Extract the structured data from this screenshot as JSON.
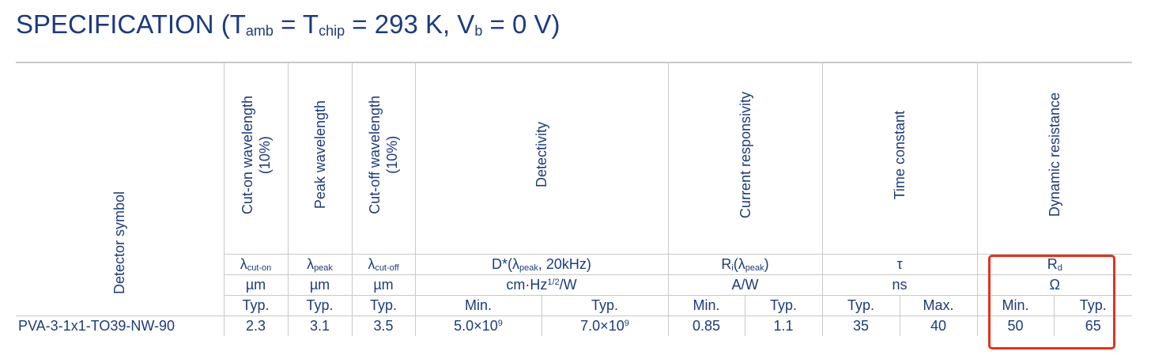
{
  "title": {
    "prefix": "SPECIFICATION (T",
    "amb": "amb",
    "eq1": " = T",
    "chip": "chip",
    "eq2": " = 293 K, V",
    "b": "b",
    "suffix": " = 0 V)"
  },
  "headers": {
    "detector_symbol": "Detector symbol",
    "cut_on": "Cut-on wavelength\n(10%)",
    "peak": "Peak wavelength",
    "cut_off": "Cut-off wavelength\n(10%)",
    "detectivity": "Detectivity",
    "responsivity": "Current responsivity",
    "time_constant": "Time constant",
    "dynamic_resistance": "Dynamic resistance"
  },
  "params": {
    "cut_on_sym": "λ",
    "cut_on_sub": "cut-on",
    "peak_sym": "λ",
    "peak_sub": "peak",
    "cut_off_sym": "λ",
    "cut_off_sub": "cut-off",
    "det_a": "D*(λ",
    "det_sub": "peak",
    "det_b": ", 20kHz)",
    "resp_a": "R",
    "resp_sub1": "i",
    "resp_b": "(λ",
    "resp_sub2": "peak",
    "resp_c": ")",
    "tau": "τ",
    "rd": "R",
    "rd_sub": "d"
  },
  "units": {
    "cut_on": "µm",
    "peak": "µm",
    "cut_off": "µm",
    "det_a": "cm·Hz",
    "det_sup": "1/2",
    "det_b": "/W",
    "resp": "A/W",
    "time": "ns",
    "res": "Ω"
  },
  "stats": {
    "cut_on": "Typ.",
    "peak": "Typ.",
    "cut_off": "Typ.",
    "det_min": "Min.",
    "det_typ": "Typ.",
    "resp_min": "Min.",
    "resp_typ": "Typ.",
    "time_typ": "Typ.",
    "time_max": "Max.",
    "res_min": "Min.",
    "res_typ": "Typ."
  },
  "row": {
    "model": "PVA-3-1x1-TO39-NW-90",
    "cut_on": "2.3",
    "peak": "3.1",
    "cut_off": "3.5",
    "det_min": "5.0×10",
    "det_min_exp": "9",
    "det_typ": "7.0×10",
    "det_typ_exp": "9",
    "resp_min": "0.85",
    "resp_typ": "1.1",
    "time_typ": "35",
    "time_max": "40",
    "res_min": "50",
    "res_typ": "65"
  }
}
